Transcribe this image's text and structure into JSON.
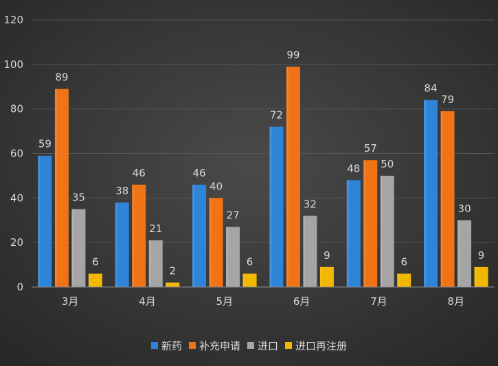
{
  "chart_data": {
    "type": "bar",
    "categories": [
      "3月",
      "4月",
      "5月",
      "6月",
      "7月",
      "8月"
    ],
    "series": [
      {
        "name": "新药",
        "values": [
          59,
          38,
          46,
          72,
          48,
          84
        ],
        "color": "#2e84d8"
      },
      {
        "name": "补充申请",
        "values": [
          89,
          46,
          40,
          99,
          57,
          79
        ],
        "color": "#f07315"
      },
      {
        "name": "进口",
        "values": [
          35,
          21,
          27,
          32,
          50,
          30
        ],
        "color": "#a5a5a5"
      },
      {
        "name": "进口再注册",
        "values": [
          6,
          2,
          6,
          9,
          6,
          9
        ],
        "color": "#f2b700"
      }
    ],
    "ylim": [
      0,
      120
    ],
    "yticks": [
      0,
      20,
      40,
      60,
      80,
      100,
      120
    ],
    "grid": true,
    "legend": "bottom",
    "title": "",
    "xlabel": "",
    "ylabel": ""
  }
}
